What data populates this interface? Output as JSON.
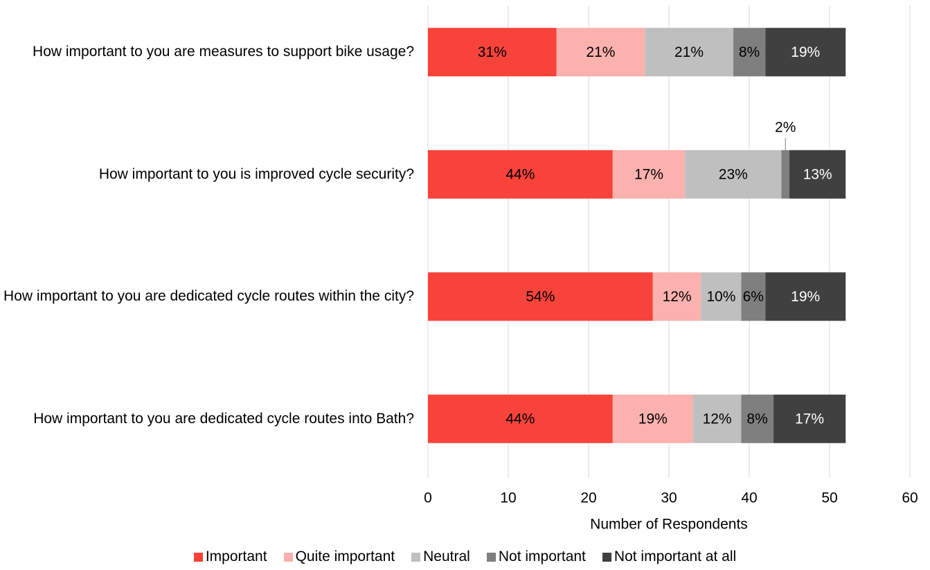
{
  "chart_data": {
    "type": "stacked-bar-horizontal",
    "x_label": "Number of Respondents",
    "categories": [
      "How important to you are measures to support bike usage?",
      "How important to you is improved cycle security?",
      "How important to you are dedicated cycle routes within the city?",
      "How important to you are dedicated cycle routes into Bath?"
    ],
    "series": [
      {
        "name": "Important",
        "color": "#f8433b",
        "label_color": "#000000",
        "values": [
          16,
          23,
          28,
          23
        ],
        "value_labels": [
          "31%",
          "44%",
          "54%",
          "44%"
        ]
      },
      {
        "name": "Quite important",
        "color": "#fbb1ad",
        "label_color": "#000000",
        "values": [
          11,
          9,
          6,
          10
        ],
        "value_labels": [
          "21%",
          "17%",
          "12%",
          "19%"
        ]
      },
      {
        "name": "Neutral",
        "color": "#bfbfbf",
        "label_color": "#000000",
        "values": [
          11,
          12,
          5,
          6
        ],
        "value_labels": [
          "21%",
          "23%",
          "10%",
          "12%"
        ]
      },
      {
        "name": "Not important",
        "color": "#7f7f7f",
        "label_color": "#000000",
        "values": [
          4,
          1,
          3,
          4
        ],
        "value_labels": [
          "8%",
          "2%",
          "6%",
          "8%"
        ]
      },
      {
        "name": "Not important at all",
        "color": "#404040",
        "label_color": "#ffffff",
        "values": [
          10,
          7,
          10,
          9
        ],
        "value_labels": [
          "19%",
          "13%",
          "19%",
          "17%"
        ]
      }
    ],
    "xlim": [
      0,
      60
    ],
    "xticks": [
      0,
      10,
      20,
      30,
      40,
      50,
      60
    ],
    "grid": true,
    "legend": "bottom"
  }
}
